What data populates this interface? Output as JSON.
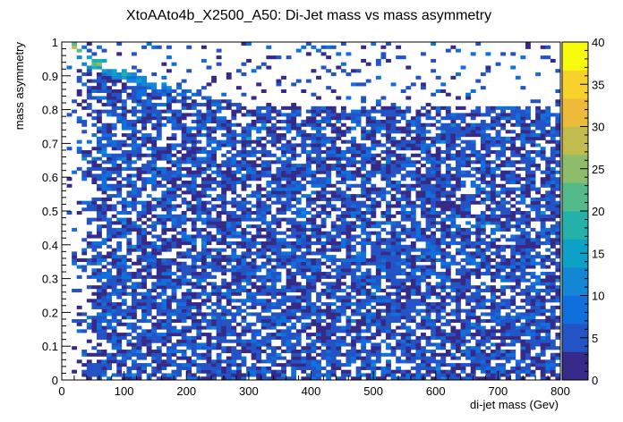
{
  "chart_data": {
    "type": "heatmap",
    "title": "XtoAAto4b_X2500_A50: Di-Jet mass vs mass asymmetry",
    "xlabel": "di-jet mass (Gev)",
    "ylabel": "mass asymmetry",
    "xlim": [
      0,
      800
    ],
    "ylim": [
      0,
      1
    ],
    "zlim": [
      0,
      40
    ],
    "x_ticks": [
      "0",
      "100",
      "200",
      "300",
      "400",
      "500",
      "600",
      "700",
      "800"
    ],
    "y_ticks": [
      "0",
      "0.1",
      "0.2",
      "0.3",
      "0.4",
      "0.5",
      "0.6",
      "0.7",
      "0.8",
      "0.9",
      "1"
    ],
    "z_ticks": [
      "0",
      "5",
      "10",
      "15",
      "20",
      "25",
      "30",
      "35",
      "40"
    ],
    "bins": {
      "nx": 100,
      "ny": 100
    },
    "palette": [
      "#352a87",
      "#2353c4",
      "#0f6fdd",
      "#1387d5",
      "#0ea1c7",
      "#24b1aa",
      "#53ba8c",
      "#8dbc6b",
      "#c2bb4d",
      "#eeba3a",
      "#f9d12b",
      "#f9fb0e"
    ],
    "band": {
      "description_points": [
        [
          15,
          1.0
        ],
        [
          40,
          0.95
        ],
        [
          80,
          0.92
        ],
        [
          140,
          0.88
        ],
        [
          200,
          0.85
        ],
        [
          300,
          0.8
        ]
      ],
      "peak_count": 30
    }
  }
}
